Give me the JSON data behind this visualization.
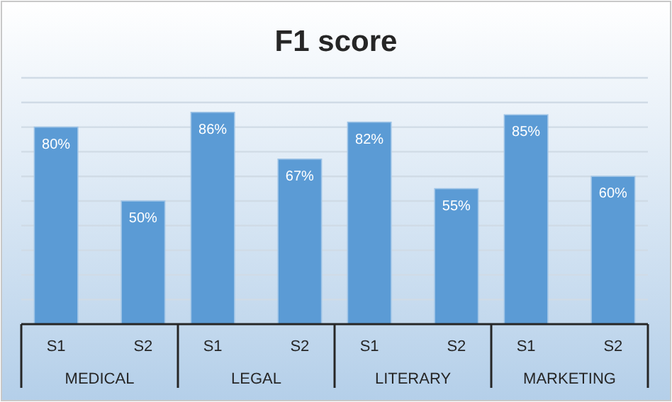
{
  "chart_data": {
    "type": "bar",
    "title": "F1 score",
    "categories": [
      "MEDICAL",
      "LEGAL",
      "LITERARY",
      "MARKETING"
    ],
    "series": [
      {
        "name": "S1",
        "color": "#5b9bd5",
        "values": [
          80,
          86,
          82,
          85
        ],
        "value_labels": [
          "80%",
          "86%",
          "82%",
          "85%"
        ]
      },
      {
        "name": "S2",
        "color": "#5b9bd5",
        "values": [
          50,
          67,
          55,
          60
        ],
        "value_labels": [
          "50%",
          "67%",
          "55%",
          "60%"
        ]
      }
    ],
    "ylim": [
      0,
      100
    ],
    "yticks": [
      {
        "value": 0,
        "label": null
      },
      {
        "value": 10,
        "label": null
      },
      {
        "value": 20,
        "label": null
      },
      {
        "value": 30,
        "label": null
      },
      {
        "value": 40,
        "label": null
      },
      {
        "value": 50,
        "label": null
      },
      {
        "value": 60,
        "label": null
      },
      {
        "value": 70,
        "label": null
      },
      {
        "value": 80,
        "label": null
      },
      {
        "value": 90,
        "label": null
      },
      {
        "value": 100,
        "label": null
      }
    ],
    "grid": true,
    "tick_labels": "x"
  }
}
